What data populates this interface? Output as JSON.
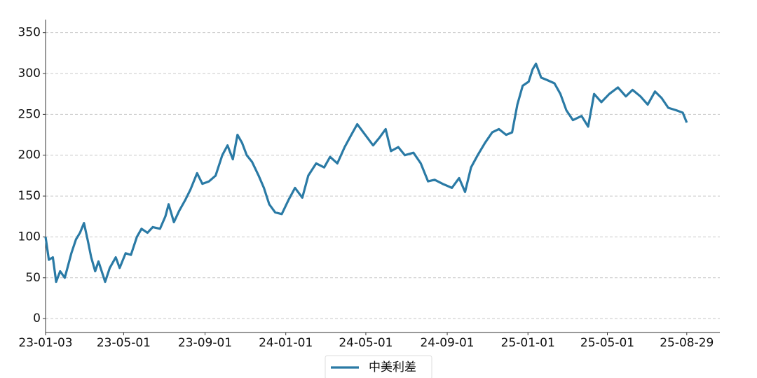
{
  "chart_data": {
    "type": "line",
    "x": [
      "23-01-03",
      "23-01-08",
      "23-01-14",
      "23-01-19",
      "23-01-25",
      "23-02-01",
      "23-02-05",
      "23-02-11",
      "23-02-18",
      "23-02-24",
      "23-03-02",
      "23-03-08",
      "23-03-13",
      "23-03-19",
      "23-03-24",
      "23-04-03",
      "23-04-10",
      "23-04-19",
      "23-04-25",
      "23-05-04",
      "23-05-12",
      "23-05-21",
      "23-05-28",
      "23-06-06",
      "23-06-14",
      "23-06-25",
      "23-07-03",
      "23-07-08",
      "23-07-16",
      "23-07-24",
      "23-08-02",
      "23-08-10",
      "23-08-20",
      "23-08-28",
      "23-09-07",
      "23-09-17",
      "23-09-27",
      "23-10-05",
      "23-10-13",
      "23-10-20",
      "23-10-27",
      "23-11-03",
      "23-11-11",
      "23-11-21",
      "23-11-29",
      "23-12-07",
      "23-12-16",
      "23-12-26",
      "24-01-05",
      "24-01-15",
      "24-01-26",
      "24-02-04",
      "24-02-16",
      "24-02-28",
      "24-03-08",
      "24-03-19",
      "24-03-30",
      "24-04-09",
      "24-04-18",
      "24-04-30",
      "24-05-12",
      "24-05-22",
      "24-05-31",
      "24-06-08",
      "24-06-19",
      "24-06-29",
      "24-07-12",
      "24-07-23",
      "24-08-03",
      "24-08-13",
      "24-08-25",
      "24-09-08",
      "24-09-19",
      "24-09-28",
      "24-10-07",
      "24-10-17",
      "24-10-28",
      "24-11-08",
      "24-11-18",
      "24-11-29",
      "24-12-08",
      "24-12-16",
      "24-12-24",
      "25-01-02",
      "25-01-08",
      "25-01-13",
      "25-01-21",
      "25-01-30",
      "25-02-10",
      "25-02-19",
      "25-02-28",
      "25-03-10",
      "25-03-23",
      "25-04-02",
      "25-04-11",
      "25-04-22",
      "25-05-04",
      "25-05-17",
      "25-05-29",
      "25-06-08",
      "25-06-20",
      "25-07-01",
      "25-07-12",
      "25-07-22",
      "25-08-01",
      "25-08-13",
      "25-08-23",
      "25-08-29"
    ],
    "series": [
      {
        "name": "中美利差",
        "color": "#2a7aa5",
        "values": [
          100,
          72,
          75,
          45,
          58,
          50,
          62,
          80,
          97,
          105,
          117,
          95,
          75,
          58,
          70,
          45,
          62,
          75,
          62,
          80,
          78,
          100,
          110,
          105,
          112,
          110,
          125,
          140,
          118,
          132,
          145,
          158,
          178,
          165,
          168,
          175,
          200,
          212,
          195,
          225,
          215,
          200,
          192,
          175,
          160,
          140,
          130,
          128,
          145,
          160,
          148,
          175,
          190,
          185,
          198,
          190,
          210,
          225,
          238,
          225,
          212,
          222,
          232,
          205,
          210,
          200,
          203,
          190,
          168,
          170,
          165,
          160,
          172,
          155,
          185,
          200,
          215,
          228,
          232,
          225,
          228,
          262,
          285,
          290,
          305,
          312,
          295,
          292,
          288,
          275,
          255,
          243,
          248,
          235,
          275,
          265,
          275,
          283,
          272,
          280,
          272,
          262,
          278,
          270,
          258,
          255,
          252,
          240
        ]
      }
    ],
    "xlim": [
      "23-01-03",
      "25-10-18"
    ],
    "xticks": [
      "23-01-03",
      "23-05-01",
      "23-09-01",
      "24-01-01",
      "24-05-01",
      "24-09-01",
      "25-01-01",
      "25-05-01",
      "25-08-29"
    ],
    "ylim": [
      -17,
      366
    ],
    "yticks": [
      0,
      50,
      100,
      150,
      200,
      250,
      300,
      350
    ],
    "grid": true,
    "legend": "bottom"
  }
}
